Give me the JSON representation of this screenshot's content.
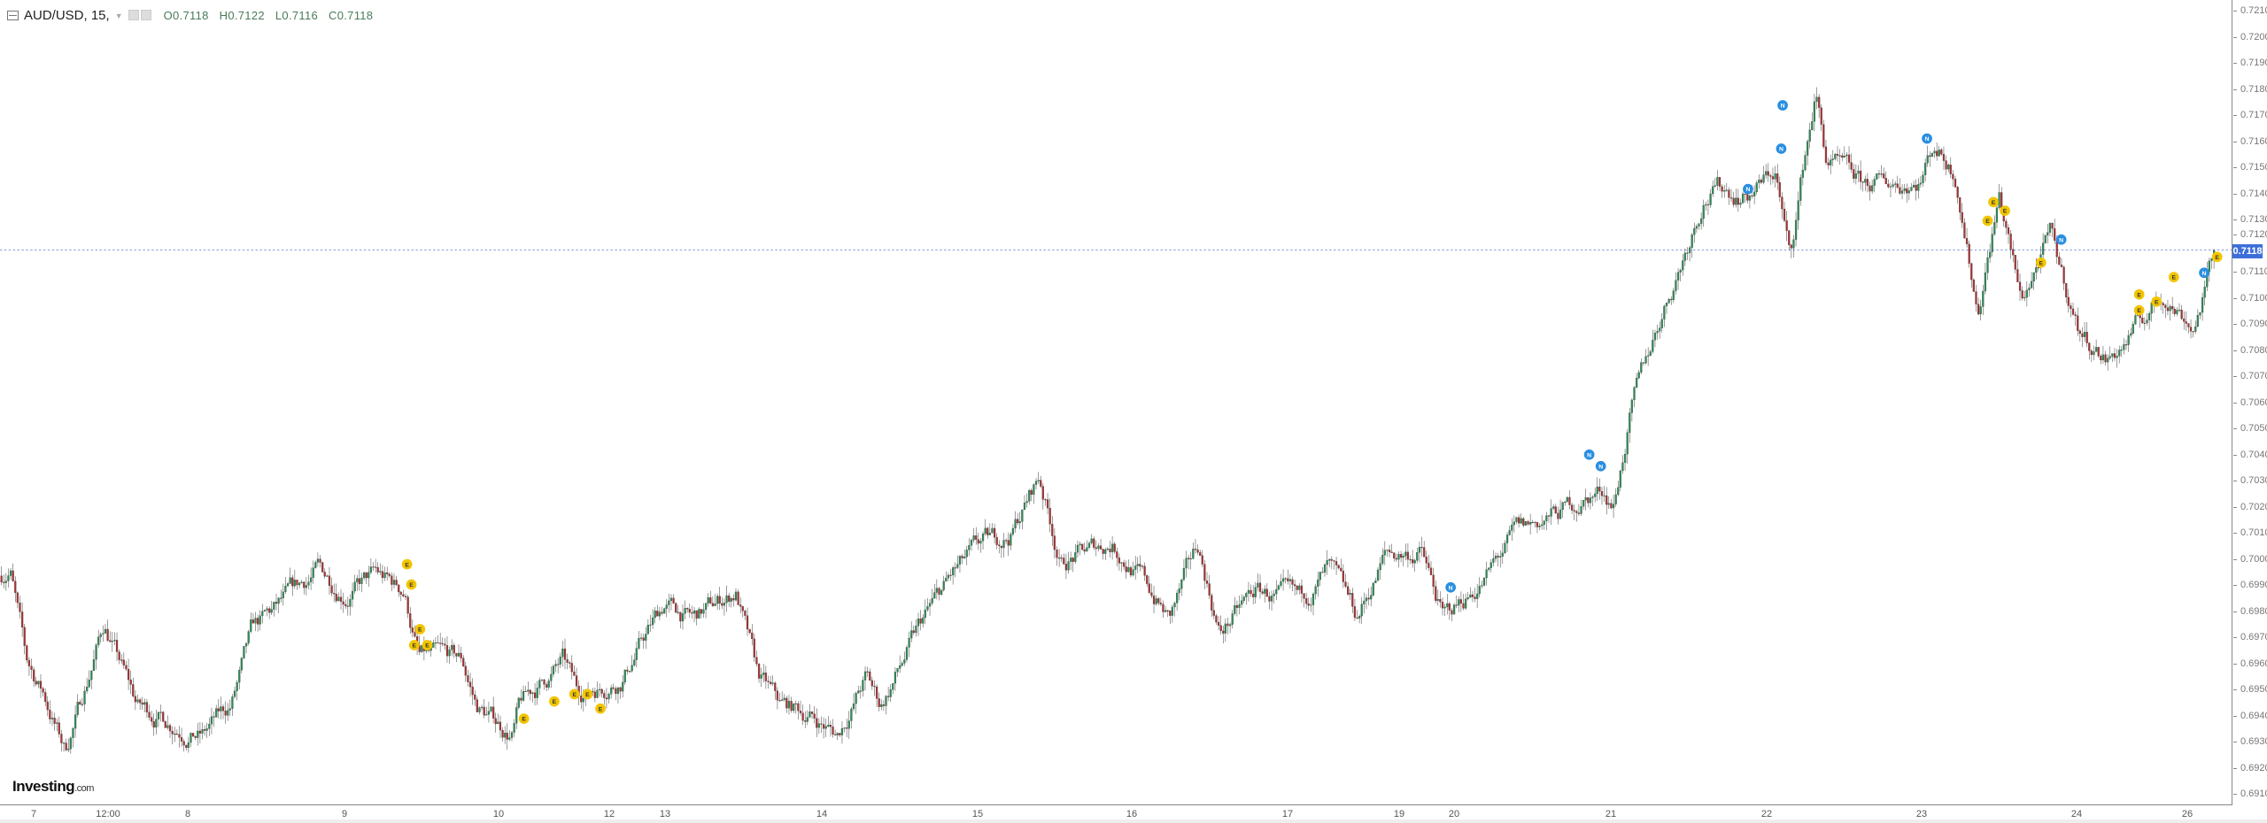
{
  "header": {
    "symbol": "AUD/USD, 15,",
    "open": "O0.7118",
    "high": "H0.7122",
    "low": "L0.7116",
    "close": "C0.7118"
  },
  "logo": {
    "name": "Investing",
    "suffix": ".com"
  },
  "current_price": "0.7118",
  "colors": {
    "up": "#2e8b57",
    "down": "#a83232",
    "wick": "#333333",
    "price_line": "#3d6fd8",
    "event_e": "#f2c500",
    "event_blue": "#2a8fe0"
  },
  "chart_data": {
    "type": "candlestick",
    "title": "AUD/USD, 15,",
    "grid": false,
    "y_ticks": [
      "0.7210",
      "0.7200",
      "0.7190",
      "0.7180",
      "0.7170",
      "0.7160",
      "0.7150",
      "0.7140",
      "0.7130",
      "0.7120",
      "0.7110",
      "0.7100",
      "0.7090",
      "0.7080",
      "0.7070",
      "0.7060",
      "0.7050",
      "0.7040",
      "0.7030",
      "0.7020",
      "0.7010",
      "0.7000",
      "0.6990",
      "0.6980",
      "0.6970",
      "0.6960",
      "0.6950",
      "0.6940",
      "0.6930",
      "0.6920",
      "0.6910"
    ],
    "ylim": [
      0.691,
      0.721
    ],
    "x_ticks": [
      "7",
      "12:00",
      "8",
      "9",
      "10",
      "12",
      "13",
      "14",
      "15",
      "16",
      "17",
      "19",
      "20",
      "21",
      "22",
      "23",
      "24",
      "26"
    ],
    "price_path": [
      0.6993,
      0.6997,
      0.696,
      0.6948,
      0.6926,
      0.6943,
      0.6975,
      0.6943,
      0.6932,
      0.6943,
      0.6971,
      0.6984,
      0.6995,
      0.6987,
      0.6993,
      0.6987,
      0.6962,
      0.696,
      0.6943,
      0.6932,
      0.6943,
      0.696,
      0.6948,
      0.6954,
      0.6982,
      0.6976,
      0.6987,
      0.6954,
      0.6943,
      0.694,
      0.6932,
      0.6954,
      0.6943,
      0.6976,
      0.6993,
      0.7004,
      0.7009,
      0.7031,
      0.6998,
      0.7006,
      0.6993,
      0.6976,
      0.7004,
      0.6971,
      0.6987,
      0.6982,
      0.6995,
      0.6976,
      0.7001,
      0.7002,
      0.6993,
      0.6976,
      0.6993,
      0.7009,
      0.7017,
      0.7023,
      0.7026,
      0.7021,
      0.7056,
      0.7092,
      0.7114,
      0.7139,
      0.7142,
      0.7139,
      0.7148,
      0.7114,
      0.7153,
      0.7178,
      0.7153,
      0.7142,
      0.7145,
      0.7159,
      0.7148,
      0.7095,
      0.7139,
      0.7098,
      0.7123,
      0.7087,
      0.7076,
      0.7081,
      0.7095,
      0.7101,
      0.7089,
      0.7118
    ],
    "last": {
      "open": 0.7118,
      "high": 0.7122,
      "low": 0.7116,
      "close": 0.7118
    },
    "events": [
      {
        "label": "E",
        "kind": "economic"
      },
      {
        "label": "E",
        "kind": "economic"
      },
      {
        "label": "E",
        "kind": "economic"
      },
      {
        "label": "E",
        "kind": "economic"
      },
      {
        "label": "E",
        "kind": "economic"
      },
      {
        "label": "E",
        "kind": "economic"
      },
      {
        "label": "E",
        "kind": "economic"
      },
      {
        "label": "E",
        "kind": "economic"
      },
      {
        "label": "E",
        "kind": "economic"
      },
      {
        "label": "E",
        "kind": "economic"
      },
      {
        "label": "N",
        "kind": "news"
      },
      {
        "label": "N",
        "kind": "news"
      },
      {
        "label": "N",
        "kind": "news"
      },
      {
        "label": "N",
        "kind": "news"
      },
      {
        "label": "N",
        "kind": "news"
      },
      {
        "label": "N",
        "kind": "news"
      },
      {
        "label": "N",
        "kind": "news"
      },
      {
        "label": "E",
        "kind": "economic"
      },
      {
        "label": "E",
        "kind": "economic"
      },
      {
        "label": "E",
        "kind": "economic"
      },
      {
        "label": "E",
        "kind": "economic"
      },
      {
        "label": "N",
        "kind": "news"
      },
      {
        "label": "E",
        "kind": "economic"
      },
      {
        "label": "E",
        "kind": "economic"
      },
      {
        "label": "E",
        "kind": "economic"
      },
      {
        "label": "E",
        "kind": "economic"
      },
      {
        "label": "N",
        "kind": "news"
      },
      {
        "label": "E",
        "kind": "economic"
      }
    ]
  }
}
